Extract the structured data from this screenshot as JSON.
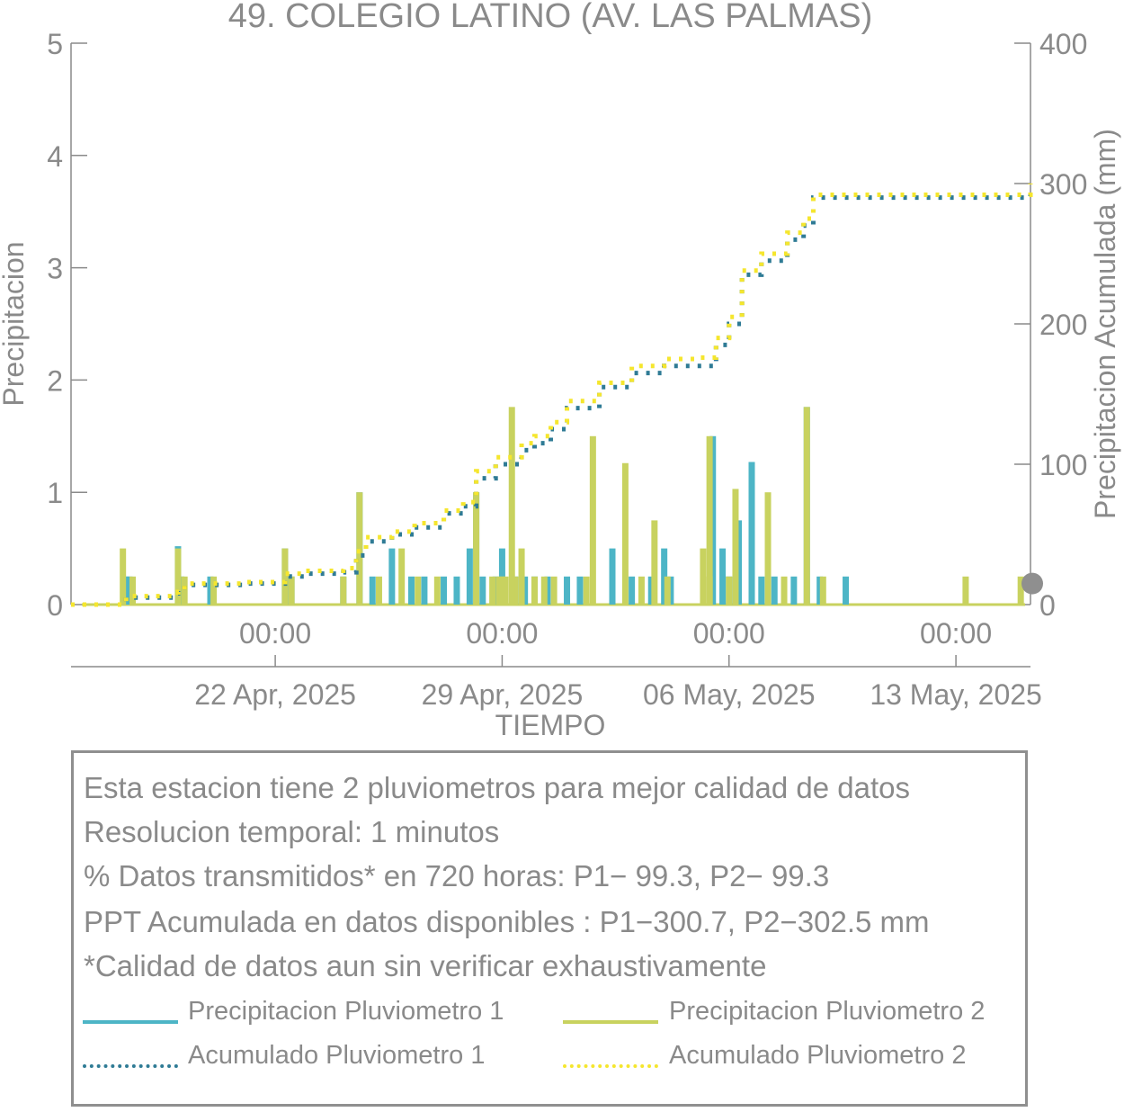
{
  "colors": {
    "p1": "#4db5c6",
    "p2": "#c8d25f",
    "acc1": "#2f7b95",
    "acc2": "#f5e62e",
    "axis": "#8a8a8a",
    "marker": "#8f8f8f"
  },
  "chart_data": {
    "type": "bar+line",
    "title": "49. COLEGIO LATINO (AV. LAS PALMAS)",
    "xlabel": "TIEMPO",
    "ylabel_left": "Precipitacion",
    "ylabel_right": "Precipitacion Acumulada (mm)",
    "ylim_left": [
      0,
      5
    ],
    "ylim_right": [
      0,
      400
    ],
    "yticks_left": [
      "0",
      "1",
      "2",
      "3",
      "4",
      "5"
    ],
    "yticks_right": [
      "0",
      "100",
      "200",
      "300",
      "400"
    ],
    "xlim_days": [
      -6.3,
      23.3
    ],
    "xticks": [
      {
        "day": 0,
        "time": "00:00",
        "date": "22 Apr, 2025"
      },
      {
        "day": 7,
        "time": "00:00",
        "date": "29 Apr, 2025"
      },
      {
        "day": 14,
        "time": "00:00",
        "date": "06 May, 2025"
      },
      {
        "day": 21,
        "time": "00:00",
        "date": "13 May, 2025"
      }
    ],
    "bars": {
      "p1": [
        [
          -4.6,
          0.25
        ],
        [
          -4.5,
          0.25
        ],
        [
          -3.0,
          0.52
        ],
        [
          -2.9,
          0.25
        ],
        [
          -2.0,
          0.25
        ],
        [
          0.3,
          0.5
        ],
        [
          0.5,
          0.25
        ],
        [
          2.1,
          0.25
        ],
        [
          2.6,
          1.0
        ],
        [
          3.0,
          0.25
        ],
        [
          3.6,
          0.5
        ],
        [
          4.2,
          0.25
        ],
        [
          4.6,
          0.25
        ],
        [
          5.2,
          0.25
        ],
        [
          5.6,
          0.25
        ],
        [
          6.0,
          0.5
        ],
        [
          6.2,
          1.0
        ],
        [
          6.4,
          0.25
        ],
        [
          6.8,
          0.25
        ],
        [
          7.0,
          0.5
        ],
        [
          7.4,
          0.25
        ],
        [
          7.7,
          0.25
        ],
        [
          8.0,
          0.25
        ],
        [
          8.4,
          0.25
        ],
        [
          9.0,
          0.25
        ],
        [
          9.4,
          0.25
        ],
        [
          10.4,
          0.5
        ],
        [
          11.0,
          0.25
        ],
        [
          11.6,
          0.25
        ],
        [
          12.0,
          0.5
        ],
        [
          12.2,
          0.25
        ],
        [
          13.5,
          1.5
        ],
        [
          13.8,
          0.5
        ],
        [
          14.0,
          0.25
        ],
        [
          14.3,
          0.75
        ],
        [
          14.7,
          1.27
        ],
        [
          15.0,
          0.25
        ],
        [
          15.4,
          0.25
        ],
        [
          16.0,
          0.25
        ],
        [
          16.8,
          0.25
        ],
        [
          17.6,
          0.25
        ],
        [
          16.4,
          1.76
        ]
      ],
      "p2": [
        [
          -4.7,
          0.5
        ],
        [
          -4.4,
          0.25
        ],
        [
          -3.0,
          0.5
        ],
        [
          -2.8,
          0.25
        ],
        [
          -1.9,
          0.25
        ],
        [
          0.3,
          0.5
        ],
        [
          0.5,
          0.25
        ],
        [
          2.1,
          0.25
        ],
        [
          2.6,
          1.0
        ],
        [
          3.2,
          0.25
        ],
        [
          3.9,
          0.5
        ],
        [
          4.4,
          0.25
        ],
        [
          5.0,
          0.25
        ],
        [
          6.2,
          1.0
        ],
        [
          6.7,
          0.25
        ],
        [
          6.9,
          0.25
        ],
        [
          7.1,
          0.25
        ],
        [
          7.0,
          0.25
        ],
        [
          7.4,
          0.25
        ],
        [
          7.6,
          0.5
        ],
        [
          8.0,
          0.25
        ],
        [
          8.3,
          0.25
        ],
        [
          8.6,
          0.25
        ],
        [
          9.8,
          1.5
        ],
        [
          9.6,
          0.25
        ],
        [
          10.8,
          1.26
        ],
        [
          11.3,
          0.25
        ],
        [
          11.7,
          0.75
        ],
        [
          12.1,
          0.25
        ],
        [
          13.2,
          0.5
        ],
        [
          13.4,
          0.25
        ],
        [
          14.0,
          0.25
        ],
        [
          13.4,
          1.5
        ],
        [
          14.2,
          1.03
        ],
        [
          15.2,
          1.0
        ],
        [
          15.7,
          0.25
        ],
        [
          16.9,
          0.25
        ],
        [
          7.3,
          1.76
        ],
        [
          16.4,
          1.76
        ],
        [
          21.3,
          0.25
        ],
        [
          23.0,
          0.25
        ]
      ]
    },
    "series": [
      {
        "name": "Precipitacion Pluviometro 1",
        "kind": "bars",
        "key": "p1"
      },
      {
        "name": "Precipitacion Pluviometro 2",
        "kind": "bars",
        "key": "p2"
      },
      {
        "name": "Acumulado Pluviometro 1",
        "kind": "cumulative",
        "x": [
          -6.3,
          -5.0,
          -4.6,
          -3.0,
          -2.8,
          -1.0,
          0.3,
          0.9,
          2.1,
          2.5,
          2.8,
          3.6,
          4.3,
          5.2,
          5.8,
          6.2,
          6.8,
          7.6,
          8.0,
          8.5,
          9.0,
          10.0,
          11.0,
          12.0,
          13.1,
          13.6,
          14.0,
          14.4,
          15.0,
          15.8,
          16.3,
          16.6,
          23.0,
          23.3
        ],
        "y": [
          0,
          0,
          5,
          8,
          14,
          15,
          20,
          22,
          23,
          35,
          45,
          50,
          55,
          65,
          70,
          90,
          100,
          110,
          115,
          125,
          140,
          155,
          165,
          170,
          170,
          185,
          200,
          235,
          245,
          260,
          270,
          290,
          290,
          298
        ]
      },
      {
        "name": "Acumulado Pluviometro 2",
        "kind": "cumulative",
        "x": [
          -6.3,
          -5.0,
          -4.6,
          -3.0,
          -2.8,
          -1.0,
          0.3,
          0.9,
          2.1,
          2.5,
          2.8,
          3.6,
          4.3,
          5.2,
          5.8,
          6.2,
          6.8,
          7.6,
          8.0,
          8.5,
          9.0,
          10.0,
          11.0,
          12.0,
          13.1,
          13.6,
          14.0,
          14.4,
          15.0,
          15.8,
          16.3,
          16.6,
          23.0,
          23.3
        ],
        "y": [
          0,
          0,
          6,
          9,
          15,
          16,
          22,
          24,
          26,
          38,
          48,
          52,
          58,
          67,
          73,
          95,
          105,
          115,
          120,
          130,
          145,
          158,
          170,
          175,
          176,
          190,
          205,
          238,
          250,
          265,
          275,
          292,
          292,
          300
        ]
      }
    ],
    "marker_right_value": 15
  },
  "info": {
    "line1": "Esta estacion tiene 2 pluviometros para mejor calidad de datos",
    "line2": "Resolucion temporal: 1 minutos",
    "line3": "% Datos transmitidos* en 720 horas: P1− 99.3, P2− 99.3",
    "line4": "PPT Acumulada en datos disponibles : P1−300.7, P2−302.5 mm",
    "line5": "*Calidad de datos aun sin verificar exhaustivamente"
  },
  "legend": {
    "p1_label": "Precipitacion Pluviometro 1",
    "p2_label": "Precipitacion Pluviometro 2",
    "acc1_label": "Acumulado Pluviometro 1",
    "acc2_label": "Acumulado Pluviometro 2"
  }
}
